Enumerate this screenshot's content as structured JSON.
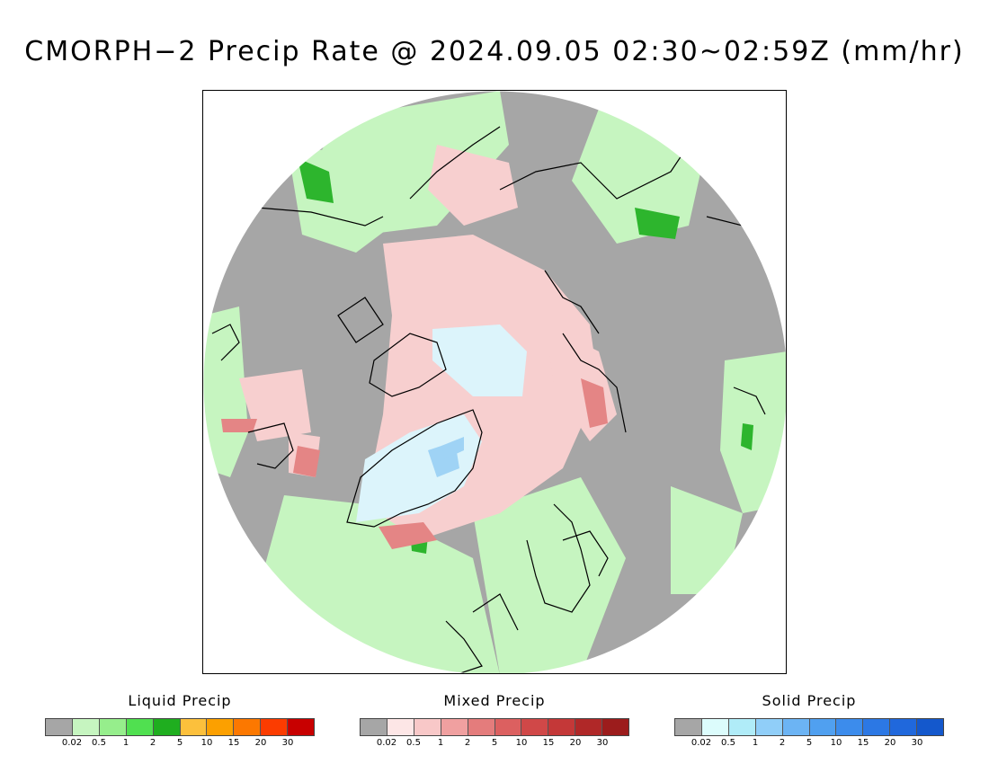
{
  "title": "CMORPH−2 Precip Rate @ 2024.09.05 02:30~02:59Z (mm/hr)",
  "colors": {
    "no_precip": "#a6a6a6",
    "coastline": "#000000",
    "liquid_light": "#c6f5c0",
    "liquid_mid": "#72e46a",
    "liquid_dark": "#2db52d",
    "mixed_light": "#f7cfcf",
    "mixed_mid": "#e48585",
    "solid_light": "#dcf4fb",
    "solid_mid": "#9fd3f5"
  },
  "legends": [
    {
      "title": "Liquid Precip",
      "colors": [
        "#a6a6a6",
        "#c6f5c0",
        "#96ee8c",
        "#50e050",
        "#1fae1f",
        "#fcc03c",
        "#fca000",
        "#fc7800",
        "#fc3c00",
        "#c80000"
      ],
      "ticks": [
        "0.02",
        "0.5",
        "1",
        "2",
        "5",
        "10",
        "15",
        "20",
        "30"
      ]
    },
    {
      "title": "Mixed Precip",
      "colors": [
        "#a6a6a6",
        "#fde6e6",
        "#f8c8c8",
        "#f0a0a0",
        "#e47c7c",
        "#dc6060",
        "#d04848",
        "#c43838",
        "#b02828",
        "#9c1c1c"
      ],
      "ticks": [
        "0.02",
        "0.5",
        "1",
        "2",
        "5",
        "10",
        "15",
        "20",
        "30"
      ]
    },
    {
      "title": "Solid Precip",
      "colors": [
        "#a6a6a6",
        "#dcfcfc",
        "#b0ecf8",
        "#90cef8",
        "#6cb4f4",
        "#50a0f0",
        "#3c8cec",
        "#2c78e4",
        "#2068dc",
        "#1458cc"
      ],
      "ticks": [
        "0.02",
        "0.5",
        "1",
        "2",
        "5",
        "10",
        "15",
        "20",
        "30"
      ]
    }
  ]
}
